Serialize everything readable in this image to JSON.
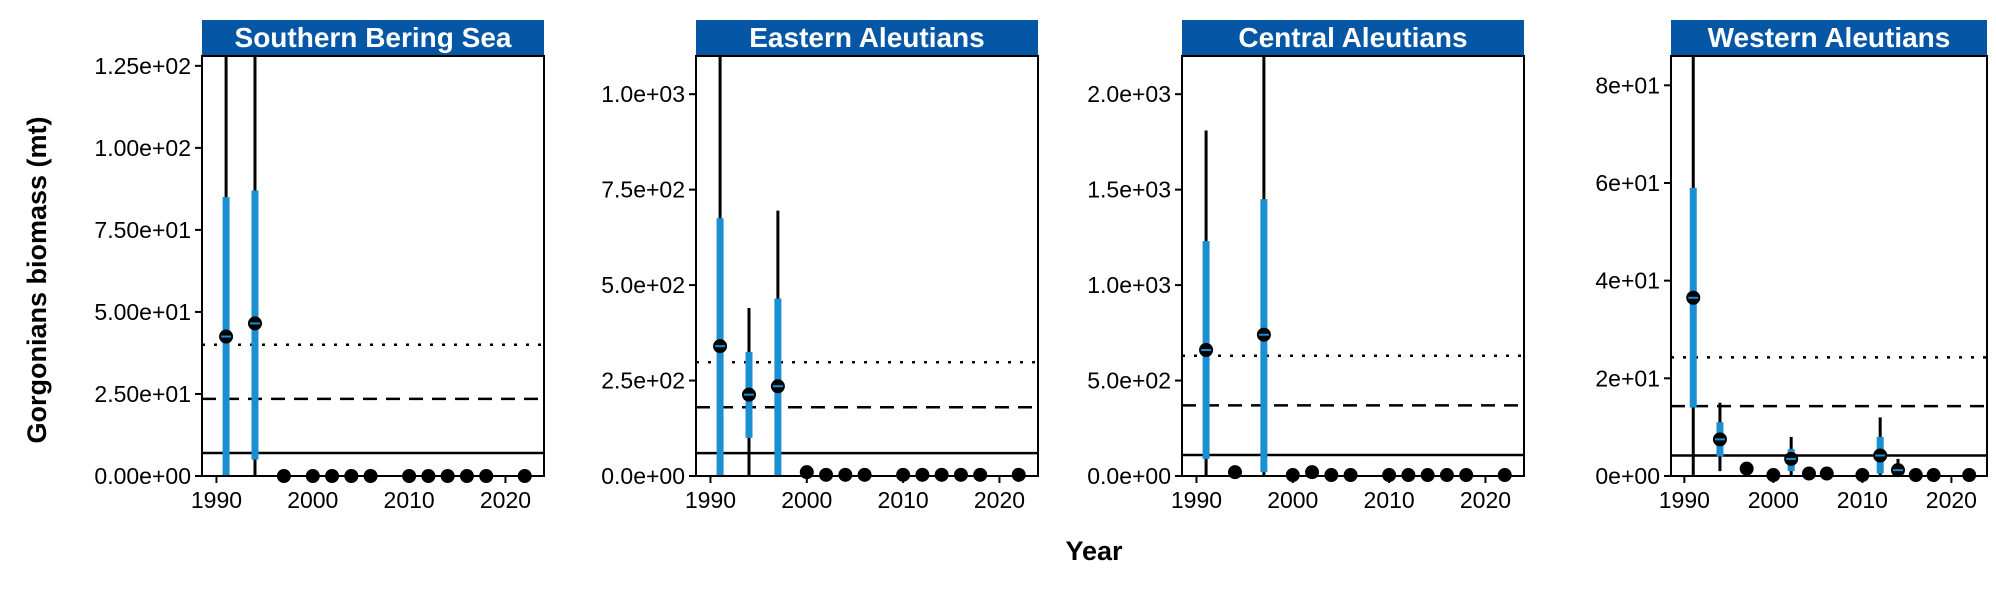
{
  "chart_data": {
    "type": "scatter",
    "ylabel": "Gorgonians biomass (mt)",
    "xlabel": "Year",
    "colors": {
      "strip": "#0556a5",
      "interval": "#1a8fd1",
      "point": "#000000",
      "line": "#000000"
    },
    "panels": [
      {
        "title": "Southern Bering Sea",
        "xticks": [
          "1990",
          "2000",
          "2010",
          "2020"
        ],
        "yticks": [
          "0.00e+00",
          "2.50e+01",
          "5.00e+01",
          "7.50e+01",
          "1.00e+02",
          "1.25e+02"
        ],
        "ylim": [
          0,
          128
        ],
        "ref_lines": {
          "solid": 7,
          "dashed": 23.5,
          "dotted": 40
        },
        "points": [
          {
            "x": 1991,
            "y": 42.5,
            "lo50": 0,
            "hi50": 85,
            "lo95": 0,
            "hi95": 128
          },
          {
            "x": 1994,
            "y": 46.5,
            "lo50": 5,
            "hi50": 87,
            "lo95": 0,
            "hi95": 128
          },
          {
            "x": 1997,
            "y": 0
          },
          {
            "x": 2000,
            "y": 0
          },
          {
            "x": 2002,
            "y": 0
          },
          {
            "x": 2004,
            "y": 0
          },
          {
            "x": 2006,
            "y": 0
          },
          {
            "x": 2010,
            "y": 0
          },
          {
            "x": 2012,
            "y": 0
          },
          {
            "x": 2014,
            "y": 0
          },
          {
            "x": 2016,
            "y": 0
          },
          {
            "x": 2018,
            "y": 0
          },
          {
            "x": 2022,
            "y": 0
          }
        ]
      },
      {
        "title": "Eastern Aleutians",
        "xticks": [
          "1990",
          "2000",
          "2010",
          "2020"
        ],
        "yticks": [
          "0.0e+00",
          "2.5e+02",
          "5.0e+02",
          "7.5e+02",
          "1.0e+03"
        ],
        "ylim": [
          0,
          1100
        ],
        "ref_lines": {
          "solid": 60,
          "dashed": 180,
          "dotted": 298
        },
        "points": [
          {
            "x": 1991,
            "y": 340,
            "lo50": 0,
            "hi50": 675,
            "lo95": 0,
            "hi95": 1100
          },
          {
            "x": 1994,
            "y": 213,
            "lo50": 100,
            "hi50": 325,
            "lo95": 0,
            "hi95": 440
          },
          {
            "x": 1997,
            "y": 235,
            "lo50": 0,
            "hi50": 465,
            "lo95": 0,
            "hi95": 695
          },
          {
            "x": 2000,
            "y": 10
          },
          {
            "x": 2002,
            "y": 3
          },
          {
            "x": 2004,
            "y": 3
          },
          {
            "x": 2006,
            "y": 3
          },
          {
            "x": 2010,
            "y": 3
          },
          {
            "x": 2012,
            "y": 3
          },
          {
            "x": 2014,
            "y": 3
          },
          {
            "x": 2016,
            "y": 3
          },
          {
            "x": 2018,
            "y": 3
          },
          {
            "x": 2022,
            "y": 3
          }
        ]
      },
      {
        "title": "Central Aleutians",
        "xticks": [
          "1990",
          "2000",
          "2010",
          "2020"
        ],
        "yticks": [
          "0.0e+00",
          "5.0e+02",
          "1.0e+03",
          "1.5e+03",
          "2.0e+03"
        ],
        "ylim": [
          0,
          2200
        ],
        "ref_lines": {
          "solid": 110,
          "dashed": 370,
          "dotted": 630
        },
        "points": [
          {
            "x": 1991,
            "y": 660,
            "lo50": 90,
            "hi50": 1230,
            "lo95": 0,
            "hi95": 1810
          },
          {
            "x": 1994,
            "y": 20
          },
          {
            "x": 1997,
            "y": 740,
            "lo50": 20,
            "hi50": 1450,
            "lo95": 0,
            "hi95": 2200
          },
          {
            "x": 2000,
            "y": 5
          },
          {
            "x": 2002,
            "y": 20
          },
          {
            "x": 2004,
            "y": 5
          },
          {
            "x": 2006,
            "y": 5
          },
          {
            "x": 2010,
            "y": 5
          },
          {
            "x": 2012,
            "y": 5
          },
          {
            "x": 2014,
            "y": 5
          },
          {
            "x": 2016,
            "y": 5
          },
          {
            "x": 2018,
            "y": 5
          },
          {
            "x": 2022,
            "y": 5
          }
        ]
      },
      {
        "title": "Western Aleutians",
        "xticks": [
          "1990",
          "2000",
          "2010",
          "2020"
        ],
        "yticks": [
          "0e+00",
          "2e+01",
          "4e+01",
          "6e+01",
          "8e+01"
        ],
        "ylim": [
          0,
          86
        ],
        "ref_lines": {
          "solid": 4.2,
          "dashed": 14.3,
          "dotted": 24.3
        },
        "points": [
          {
            "x": 1991,
            "y": 36.5,
            "lo50": 14,
            "hi50": 59,
            "lo95": 0,
            "hi95": 86
          },
          {
            "x": 1994,
            "y": 7.5,
            "lo50": 4,
            "hi50": 11,
            "lo95": 1,
            "hi95": 15
          },
          {
            "x": 1997,
            "y": 1.5
          },
          {
            "x": 2000,
            "y": 0.2
          },
          {
            "x": 2002,
            "y": 3.5,
            "lo50": 1,
            "hi50": 5.5,
            "lo95": 0,
            "hi95": 8
          },
          {
            "x": 2004,
            "y": 0.5
          },
          {
            "x": 2006,
            "y": 0.5
          },
          {
            "x": 2010,
            "y": 0.2
          },
          {
            "x": 2012,
            "y": 4.2,
            "lo50": 0.5,
            "hi50": 8,
            "lo95": 0,
            "hi95": 12
          },
          {
            "x": 2014,
            "y": 1.2,
            "lo50": 0,
            "hi50": 2.5,
            "lo95": 0,
            "hi95": 3.5
          },
          {
            "x": 2016,
            "y": 0.2
          },
          {
            "x": 2018,
            "y": 0.2
          },
          {
            "x": 2022,
            "y": 0.2
          }
        ]
      }
    ]
  }
}
